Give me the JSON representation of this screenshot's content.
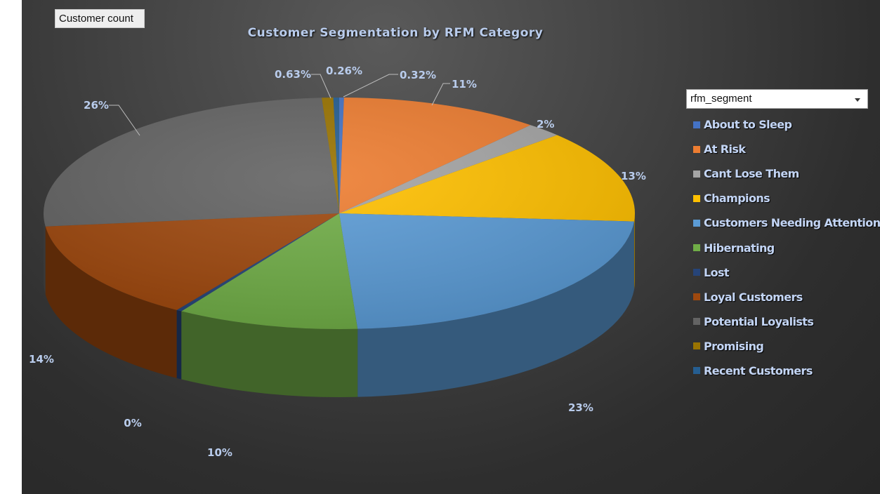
{
  "pivot": {
    "field_button": "Customer count",
    "legend_field": "rfm_segment"
  },
  "chart_data": {
    "type": "pie",
    "title": "Customer Segmentation by RFM Category",
    "style": "3d",
    "legend_position": "right",
    "slices": [
      {
        "name": "About to Sleep",
        "percent": 0.26,
        "label": "0.26%",
        "color": "#4472c4"
      },
      {
        "name": "At Risk",
        "percent": 11.0,
        "label": "11%",
        "color": "#ed7d31"
      },
      {
        "name": "Cant Lose Them",
        "percent": 2.0,
        "label": "2%",
        "color": "#a5a5a5"
      },
      {
        "name": "Champions",
        "percent": 13.0,
        "label": "13%",
        "color": "#ffc000"
      },
      {
        "name": "Customers Needing Attention",
        "percent": 23.0,
        "label": "23%",
        "color": "#5b9bd5"
      },
      {
        "name": "Hibernating",
        "percent": 10.0,
        "label": "10%",
        "color": "#70ad47"
      },
      {
        "name": "Lost",
        "percent": 0.3,
        "label": "0%",
        "color": "#264478"
      },
      {
        "name": "Loyal Customers",
        "percent": 14.0,
        "label": "14%",
        "color": "#9e480e"
      },
      {
        "name": "Potential Loyalists",
        "percent": 26.0,
        "label": "26%",
        "color": "#636363"
      },
      {
        "name": "Promising",
        "percent": 0.63,
        "label": "0.63%",
        "color": "#997300"
      },
      {
        "name": "Recent Customers",
        "percent": 0.32,
        "label": "0.32%",
        "color": "#255e91"
      }
    ]
  }
}
